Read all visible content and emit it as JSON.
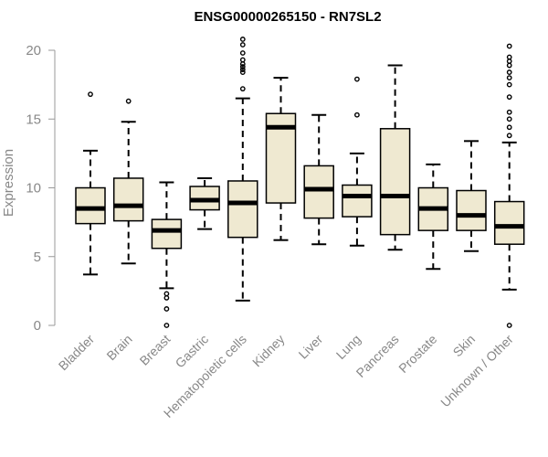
{
  "chart_data": {
    "type": "box",
    "title": "ENSG00000265150 - RN7SL2",
    "xlabel": "",
    "ylabel": "Expression",
    "ylim": [
      0,
      20
    ],
    "yticks": [
      "0",
      "5",
      "10",
      "15",
      "20"
    ],
    "box_color": "#efe9d1",
    "grid": false,
    "legend": false,
    "categories": [
      "Bladder",
      "Brain",
      "Breast",
      "Gastric",
      "Hematopoietic cells",
      "Kidney",
      "Liver",
      "Lung",
      "Pancreas",
      "Prostate",
      "Skin",
      "Unknown / Other"
    ],
    "boxes": [
      {
        "category": "Bladder",
        "whisker_low": 3.7,
        "q1": 7.4,
        "median": 8.5,
        "q3": 10.0,
        "whisker_high": 12.7,
        "outliers": [
          16.8
        ]
      },
      {
        "category": "Brain",
        "whisker_low": 4.5,
        "q1": 7.6,
        "median": 8.7,
        "q3": 10.7,
        "whisker_high": 14.8,
        "outliers": [
          16.3
        ]
      },
      {
        "category": "Breast",
        "whisker_low": 2.7,
        "q1": 5.6,
        "median": 6.9,
        "q3": 7.7,
        "whisker_high": 10.4,
        "outliers": [
          2.3,
          2.0,
          1.2,
          0.0
        ]
      },
      {
        "category": "Gastric",
        "whisker_low": 7.0,
        "q1": 8.4,
        "median": 9.1,
        "q3": 10.1,
        "whisker_high": 10.7,
        "outliers": []
      },
      {
        "category": "Hematopoietic cells",
        "whisker_low": 1.8,
        "q1": 6.4,
        "median": 8.9,
        "q3": 10.5,
        "whisker_high": 16.5,
        "outliers": [
          17.2,
          18.4,
          18.6,
          18.8,
          19.0,
          19.3,
          19.8,
          20.4,
          20.8
        ]
      },
      {
        "category": "Kidney",
        "whisker_low": 6.2,
        "q1": 8.9,
        "median": 14.4,
        "q3": 15.4,
        "whisker_high": 18.0,
        "outliers": []
      },
      {
        "category": "Liver",
        "whisker_low": 5.9,
        "q1": 7.8,
        "median": 9.9,
        "q3": 11.6,
        "whisker_high": 15.3,
        "outliers": []
      },
      {
        "category": "Lung",
        "whisker_low": 5.8,
        "q1": 7.9,
        "median": 9.4,
        "q3": 10.2,
        "whisker_high": 12.5,
        "outliers": [
          15.3,
          17.9
        ]
      },
      {
        "category": "Pancreas",
        "whisker_low": 5.5,
        "q1": 6.6,
        "median": 9.4,
        "q3": 14.3,
        "whisker_high": 18.9,
        "outliers": []
      },
      {
        "category": "Prostate",
        "whisker_low": 4.1,
        "q1": 6.9,
        "median": 8.5,
        "q3": 10.0,
        "whisker_high": 11.7,
        "outliers": []
      },
      {
        "category": "Skin",
        "whisker_low": 5.4,
        "q1": 6.9,
        "median": 8.0,
        "q3": 9.8,
        "whisker_high": 13.4,
        "outliers": []
      },
      {
        "category": "Unknown / Other",
        "whisker_low": 2.6,
        "q1": 5.9,
        "median": 7.2,
        "q3": 9.0,
        "whisker_high": 13.3,
        "outliers": [
          0.0,
          13.8,
          14.4,
          15.0,
          15.5,
          16.6,
          17.5,
          18.0,
          18.4,
          18.9,
          19.2,
          19.5,
          20.3
        ]
      }
    ]
  }
}
